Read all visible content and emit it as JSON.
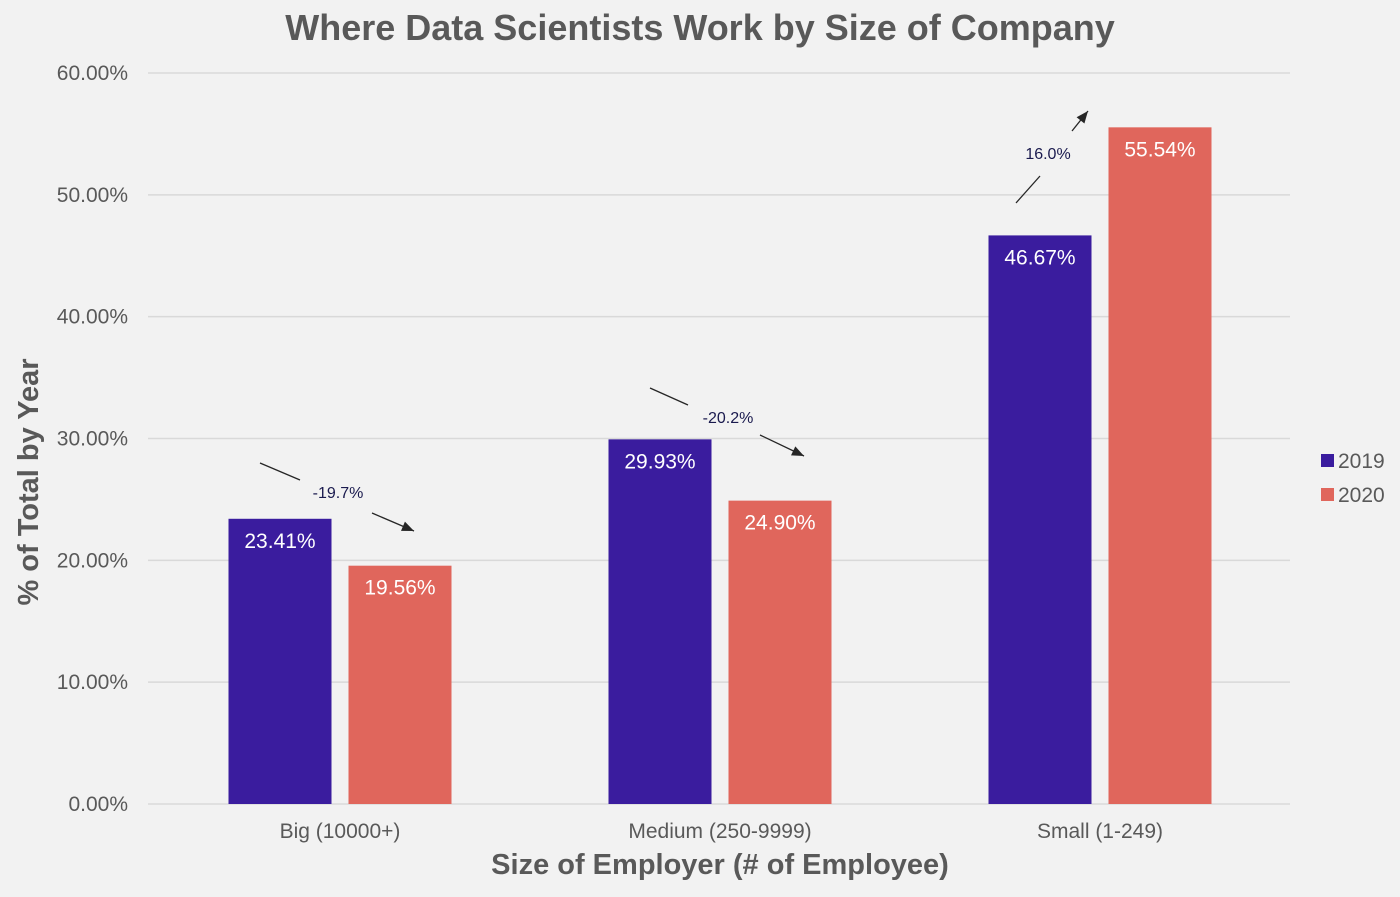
{
  "chart_data": {
    "type": "bar",
    "title": "Where Data Scientists Work by Size of Company",
    "xlabel": "Size of Employer (# of Employee)",
    "ylabel": "% of Total by Year",
    "categories": [
      "Big (10000+)",
      "Medium (250-9999)",
      "Small (1-249)"
    ],
    "series": [
      {
        "name": "2019",
        "values": [
          23.41,
          29.93,
          46.67
        ],
        "labels": [
          "23.41%",
          "29.93%",
          "46.67%"
        ],
        "color": "#3a1c9e"
      },
      {
        "name": "2020",
        "values": [
          19.56,
          24.9,
          55.54
        ],
        "labels": [
          "19.56%",
          "24.90%",
          "55.54%"
        ],
        "color": "#e0665c"
      }
    ],
    "ylim": [
      0,
      60
    ],
    "yticks": [
      0,
      10,
      20,
      30,
      40,
      50,
      60
    ],
    "ytick_labels": [
      "0.00%",
      "10.00%",
      "20.00%",
      "30.00%",
      "40.00%",
      "50.00%",
      "60.00%"
    ],
    "grid": true,
    "legend_position": "right",
    "annotations": [
      {
        "text": "-19.7%",
        "category": "Big (10000+)",
        "direction": "down"
      },
      {
        "text": "-20.2%",
        "category": "Medium (250-9999)",
        "direction": "down"
      },
      {
        "text": "16.0%",
        "category": "Small (1-249)",
        "direction": "up"
      }
    ]
  }
}
